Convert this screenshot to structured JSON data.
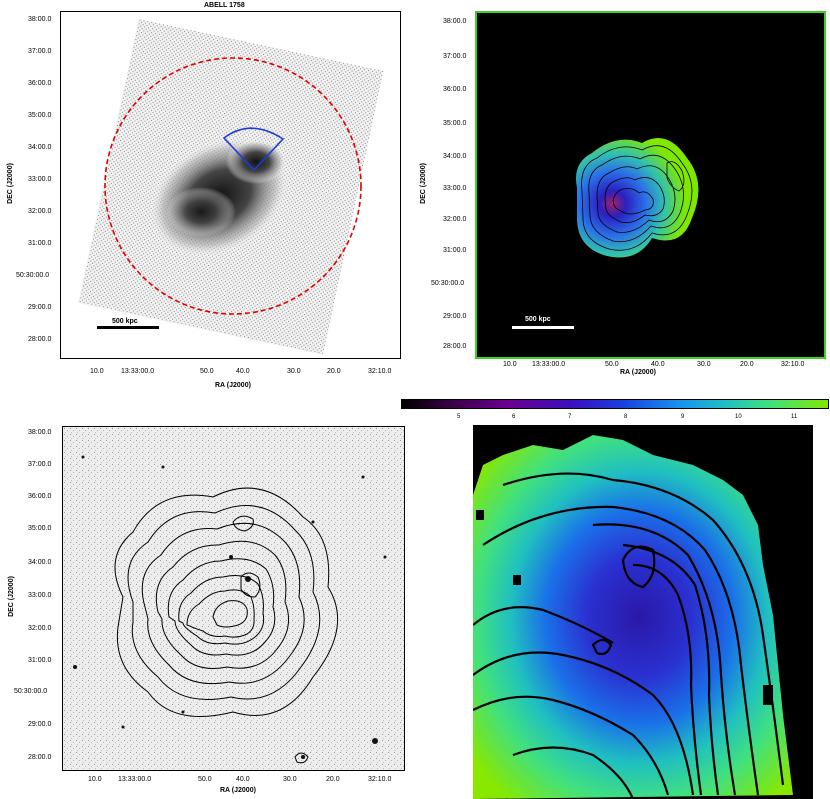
{
  "panel_tl": {
    "title": "ABELL 1758",
    "ylabel": "DEC (J2000)",
    "xlabel": "RA (J2000)",
    "yticks": [
      "38:00.0",
      "37:00.0",
      "36:00.0",
      "35:00.0",
      "34:00.0",
      "33:00.0",
      "32:00.0",
      "31:00.0",
      "50:30:00.0",
      "29:00.0",
      "28:00.0"
    ],
    "xticks": [
      "10.0",
      "13:33:00.0",
      "50.0",
      "40.0",
      "30.0",
      "20.0",
      "32:10.0"
    ],
    "scalebar_label": "500 kpc"
  },
  "panel_tr": {
    "ylabel": "DEC (J2000)",
    "xlabel": "RA (J2000)",
    "yticks": [
      "38:00.0",
      "37:00.0",
      "36:00.0",
      "35:00.0",
      "34:00.0",
      "33:00.0",
      "32:00.0",
      "31:00.0",
      "50:30:00.0",
      "29:00.0",
      "28:00.0"
    ],
    "xticks": [
      "10.0",
      "13:33:00.0",
      "50.0",
      "40.0",
      "30.0",
      "20.0",
      "32:10.0"
    ],
    "scalebar_label": "500 kpc"
  },
  "panel_bl": {
    "ylabel": "DEC (J2000)",
    "xlabel": "RA (J2000)",
    "yticks": [
      "38:00.0",
      "37:00.0",
      "36:00.0",
      "35:00.0",
      "34:00.0",
      "33:00.0",
      "32:00.0",
      "31:00.0",
      "50:30:00.0",
      "29:00.0",
      "28:00.0"
    ],
    "xticks": [
      "10.0",
      "13:33:00.0",
      "50.0",
      "40.0",
      "30.0",
      "20.0",
      "32:10.0"
    ]
  },
  "colorbar": {
    "ticks": [
      "",
      "5",
      "6",
      "7",
      "8",
      "9",
      "10",
      "11"
    ],
    "colors": [
      "#000000",
      "#3a0047",
      "#6a0090",
      "#3a10c0",
      "#1a40e0",
      "#1a90f0",
      "#20c0c0",
      "#40e080",
      "#80e800"
    ]
  }
}
